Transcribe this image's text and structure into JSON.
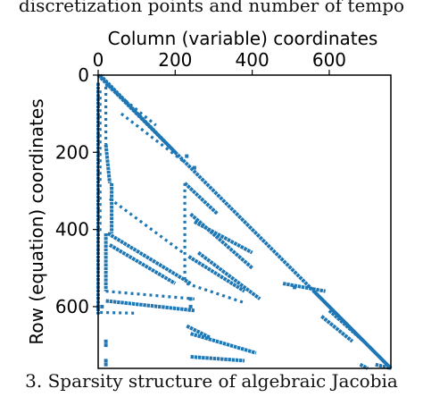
{
  "captions": {
    "top": "discretization points and number of tempo",
    "bottom": "3. Sparsity structure of algebraic Jacobia"
  },
  "colors": {
    "marker": "#1f77b4",
    "axes": "#000000"
  },
  "chart_data": {
    "type": "scatter",
    "title": "",
    "xlabel": "Column (variable) coordinates",
    "ylabel": "Row (equation) coordinates",
    "xlim": [
      0,
      760
    ],
    "ylim": [
      760,
      0
    ],
    "x_axis_position": "top",
    "xticks": [
      0,
      200,
      400,
      600
    ],
    "yticks": [
      0,
      200,
      400,
      600
    ],
    "grid": false,
    "legend": "none",
    "series": [
      {
        "segments": [
          {
            "from": [
              0,
              0
            ],
            "to": [
              760,
              760
            ],
            "style": "dense"
          },
          {
            "from": [
              5,
              0
            ],
            "to": [
              200,
              200
            ],
            "style": "dense"
          },
          {
            "from": [
              20,
              25
            ],
            "to": [
              150,
              130
            ],
            "style": "dots"
          },
          {
            "from": [
              60,
              100
            ],
            "to": [
              230,
              230
            ],
            "style": "dots"
          },
          {
            "from": [
              0,
              20
            ],
            "to": [
              0,
              620
            ],
            "style": "dense"
          },
          {
            "from": [
              5,
              40
            ],
            "to": [
              5,
              410
            ],
            "style": "dots"
          },
          {
            "from": [
              20,
              30
            ],
            "to": [
              20,
              180
            ],
            "style": "dots"
          },
          {
            "from": [
              20,
              180
            ],
            "to": [
              30,
              280
            ],
            "style": "dense"
          },
          {
            "from": [
              35,
              280
            ],
            "to": [
              35,
              410
            ],
            "style": "dense"
          },
          {
            "from": [
              20,
              410
            ],
            "to": [
              20,
              560
            ],
            "style": "dense"
          },
          {
            "from": [
              30,
              320
            ],
            "to": [
              220,
              460
            ],
            "style": "dots"
          },
          {
            "from": [
              25,
              410
            ],
            "to": [
              240,
              540
            ],
            "style": "dense"
          },
          {
            "from": [
              30,
              440
            ],
            "to": [
              200,
              540
            ],
            "style": "dense"
          },
          {
            "from": [
              20,
              560
            ],
            "to": [
              250,
              580
            ],
            "style": "dots"
          },
          {
            "from": [
              20,
              585
            ],
            "to": [
              250,
              610
            ],
            "style": "dense"
          },
          {
            "from": [
              5,
              615
            ],
            "to": [
              100,
              617
            ],
            "style": "dots"
          },
          {
            "from": [
              225,
              280
            ],
            "to": [
              225,
              540
            ],
            "style": "dots"
          },
          {
            "from": [
              225,
              280
            ],
            "to": [
              310,
              360
            ],
            "style": "dense"
          },
          {
            "from": [
              240,
              360
            ],
            "to": [
              400,
              500
            ],
            "style": "dense"
          },
          {
            "from": [
              250,
              380
            ],
            "to": [
              400,
              460
            ],
            "style": "dense"
          },
          {
            "from": [
              235,
              470
            ],
            "to": [
              380,
              560
            ],
            "style": "dense"
          },
          {
            "from": [
              260,
              460
            ],
            "to": [
              420,
              580
            ],
            "style": "dense"
          },
          {
            "from": [
              230,
              540
            ],
            "to": [
              380,
              590
            ],
            "style": "dots"
          },
          {
            "from": [
              480,
              540
            ],
            "to": [
              590,
              560
            ],
            "style": "dense"
          },
          {
            "from": [
              560,
              560
            ],
            "to": [
              760,
              760
            ],
            "style": "dense"
          },
          {
            "from": [
              230,
              650
            ],
            "to": [
              290,
              680
            ],
            "style": "dense"
          },
          {
            "from": [
              240,
              670
            ],
            "to": [
              410,
              720
            ],
            "style": "dense"
          },
          {
            "from": [
              240,
              730
            ],
            "to": [
              380,
              740
            ],
            "style": "dense"
          },
          {
            "from": [
              580,
              625
            ],
            "to": [
              660,
              690
            ],
            "style": "dense"
          },
          {
            "from": [
              600,
              610
            ],
            "to": [
              690,
              690
            ],
            "style": "dense"
          },
          {
            "from": [
              680,
              750
            ],
            "to": [
              700,
              760
            ],
            "style": "dense"
          },
          {
            "from": [
              720,
              750
            ],
            "to": [
              760,
              760
            ],
            "style": "dense"
          }
        ],
        "points": [
          [
            230,
            210
          ],
          [
            250,
            240
          ],
          [
            240,
            580
          ],
          [
            240,
            600
          ],
          [
            510,
            550
          ],
          [
            20,
            690
          ],
          [
            20,
            700
          ],
          [
            20,
            740
          ],
          [
            20,
            750
          ],
          [
            0,
            600
          ],
          [
            10,
            600
          ]
        ]
      }
    ]
  }
}
